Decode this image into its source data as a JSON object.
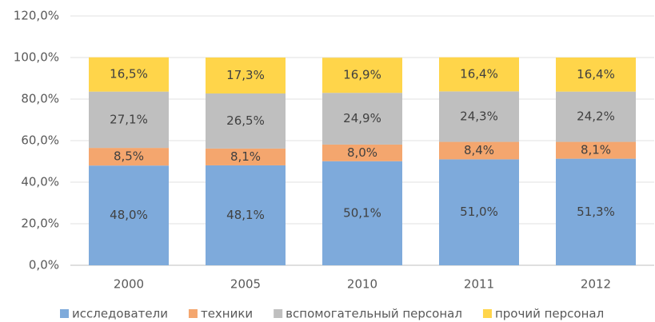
{
  "chart_data": {
    "type": "stacked_bar",
    "categories": [
      "2000",
      "2005",
      "2010",
      "2011",
      "2012"
    ],
    "series": [
      {
        "name": "исследователи",
        "color": "#7eaadb",
        "values": [
          48.0,
          48.1,
          50.1,
          51.0,
          51.3
        ],
        "value_labels": [
          "48,0%",
          "48,1%",
          "50,1%",
          "51,0%",
          "51,3%"
        ]
      },
      {
        "name": "техники",
        "color": "#f4a66e",
        "values": [
          8.5,
          8.1,
          8.0,
          8.4,
          8.1
        ],
        "value_labels": [
          "8,5%",
          "8,1%",
          "8,0%",
          "8,4%",
          "8,1%"
        ]
      },
      {
        "name": "вспомогательный персонал",
        "color": "#bfbfbf",
        "values": [
          27.1,
          26.5,
          24.9,
          24.3,
          24.2
        ],
        "value_labels": [
          "27,1%",
          "26,5%",
          "24,9%",
          "24,3%",
          "24,2%"
        ]
      },
      {
        "name": "прочий персонал",
        "color": "#ffd54a",
        "values": [
          16.5,
          17.3,
          16.9,
          16.4,
          16.4
        ],
        "value_labels": [
          "16,5%",
          "17,3%",
          "16,9%",
          "16,4%",
          "16,4%"
        ]
      }
    ],
    "ylim": [
      0,
      120
    ],
    "yticks": [
      {
        "value": 0,
        "label": "0,0%"
      },
      {
        "value": 20,
        "label": "20,0%"
      },
      {
        "value": 40,
        "label": "40,0%"
      },
      {
        "value": 60,
        "label": "60,0%"
      },
      {
        "value": 80,
        "label": "80,0%"
      },
      {
        "value": 100,
        "label": "100,0%"
      },
      {
        "value": 120,
        "label": "120,0%"
      }
    ],
    "grid": true,
    "legend": "bottom"
  }
}
